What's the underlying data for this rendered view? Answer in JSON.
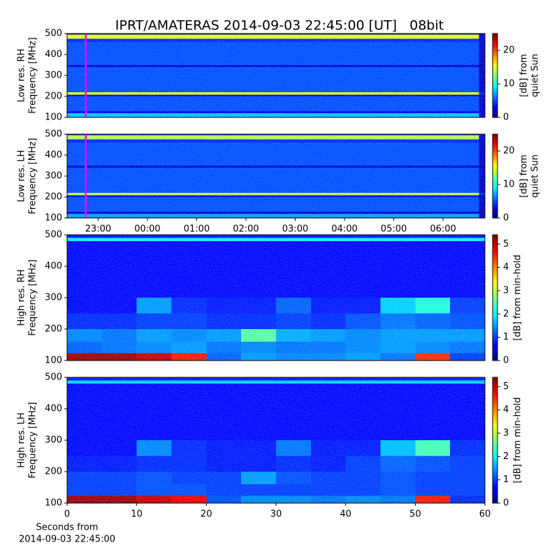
{
  "title": "IPRT/AMATERAS 2014-09-03 22:45:00 [UT]   08bit",
  "chart_data": [
    {
      "type": "heatmap",
      "ylabel": [
        "Low res. RH",
        "Frequency [MHz]"
      ],
      "cbar_label": [
        "[dB] from",
        "quiet Sun"
      ],
      "xlim": [
        22.37,
        30.85
      ],
      "ylim": [
        100,
        500
      ],
      "yticks": [
        100,
        200,
        300,
        400,
        500
      ],
      "clim": [
        0,
        25
      ],
      "cticks": [
        0,
        10,
        20
      ],
      "marker_x": 22.75,
      "marker_color": "#ff00ff",
      "x_bins": [
        22.37,
        30.73,
        30.85
      ],
      "y_bins": [
        100,
        120,
        130,
        200,
        208,
        220,
        340,
        350,
        460,
        475,
        495,
        500
      ],
      "z": [
        [
          8,
          2
        ],
        [
          3,
          2
        ],
        [
          5,
          2
        ],
        [
          3,
          1
        ],
        [
          15,
          4
        ],
        [
          5,
          2
        ],
        [
          2,
          1
        ],
        [
          5,
          2
        ],
        [
          4,
          2
        ],
        [
          15,
          3
        ],
        [
          2,
          1
        ]
      ]
    },
    {
      "type": "heatmap",
      "ylabel": [
        "Low res. LH",
        "Frequency [MHz]"
      ],
      "cbar_label": [
        "[dB] from",
        "quiet Sun"
      ],
      "xlim": [
        22.37,
        30.85
      ],
      "ylim": [
        100,
        500
      ],
      "yticks": [
        100,
        200,
        300,
        400,
        500
      ],
      "xticks": [
        {
          "value": 23,
          "label": "23:00"
        },
        {
          "value": 24,
          "label": "00:00"
        },
        {
          "value": 25,
          "label": "01:00"
        },
        {
          "value": 26,
          "label": "02:00"
        },
        {
          "value": 27,
          "label": "03:00"
        },
        {
          "value": 28,
          "label": "04:00"
        },
        {
          "value": 29,
          "label": "05:00"
        },
        {
          "value": 30,
          "label": "06:00"
        }
      ],
      "clim": [
        0,
        25
      ],
      "cticks": [
        0,
        10,
        20
      ],
      "marker_x": 22.75,
      "marker_color": "#ff00ff",
      "x_bins": [
        22.37,
        30.73,
        30.85
      ],
      "y_bins": [
        100,
        120,
        130,
        200,
        208,
        220,
        340,
        350,
        460,
        475,
        495,
        500
      ],
      "z": [
        [
          7,
          2
        ],
        [
          2,
          1
        ],
        [
          5,
          2
        ],
        [
          3,
          1
        ],
        [
          14,
          4
        ],
        [
          5,
          2
        ],
        [
          2,
          1
        ],
        [
          5,
          2
        ],
        [
          4,
          2
        ],
        [
          14,
          3
        ],
        [
          2,
          1
        ]
      ]
    },
    {
      "type": "heatmap",
      "ylabel": [
        "High res. RH",
        "Frequency [MHz]"
      ],
      "cbar_label": [
        "[dB] from min-hold"
      ],
      "xlim": [
        0,
        60
      ],
      "ylim": [
        100,
        500
      ],
      "yticks": [
        100,
        200,
        300,
        400,
        500
      ],
      "clim": [
        0,
        5.4
      ],
      "cticks": [
        0,
        1,
        2,
        3,
        4,
        5
      ],
      "x_bins": [
        0,
        5,
        10,
        15,
        20,
        25,
        30,
        35,
        40,
        45,
        50,
        55,
        60
      ],
      "y_bins": [
        100,
        123,
        160,
        200,
        250,
        300,
        480,
        490,
        500
      ],
      "z": [
        [
          5.2,
          5.2,
          5.0,
          4.6,
          1.2,
          1.5,
          1.4,
          1.4,
          1.5,
          1.3,
          4.5,
          1.0
        ],
        [
          1.2,
          1.3,
          1.4,
          1.5,
          1.3,
          1.4,
          1.3,
          1.3,
          1.4,
          1.5,
          1.4,
          1.3
        ],
        [
          1.4,
          1.3,
          1.5,
          1.4,
          1.5,
          2.5,
          1.6,
          1.5,
          1.4,
          1.5,
          1.5,
          1.5
        ],
        [
          0.9,
          0.9,
          1.0,
          1.0,
          0.9,
          0.9,
          1.0,
          0.9,
          1.1,
          1.3,
          1.2,
          1.1
        ],
        [
          0.7,
          0.7,
          1.5,
          0.9,
          0.8,
          0.8,
          1.2,
          0.8,
          0.8,
          1.8,
          2.2,
          1.0
        ],
        [
          0.7,
          0.7,
          0.7,
          0.7,
          0.7,
          0.7,
          0.7,
          0.7,
          0.7,
          0.7,
          0.7,
          0.7
        ],
        [
          2.0,
          2.0,
          2.0,
          2.0,
          2.0,
          2.0,
          2.0,
          2.0,
          2.0,
          2.0,
          2.0,
          2.0
        ],
        [
          0.8,
          0.8,
          0.8,
          0.8,
          0.8,
          0.8,
          0.8,
          0.8,
          0.8,
          0.8,
          0.8,
          0.8
        ]
      ]
    },
    {
      "type": "heatmap",
      "ylabel": [
        "High res. LH",
        "Frequency [MHz]"
      ],
      "cbar_label": [
        "[dB] from min-hold"
      ],
      "xlim": [
        0,
        60
      ],
      "ylim": [
        100,
        500
      ],
      "yticks": [
        100,
        200,
        300,
        400,
        500
      ],
      "xticks": [
        0,
        10,
        20,
        30,
        40,
        50,
        60
      ],
      "xlabel": [
        "Seconds from",
        "2014-09-03 22:45:00"
      ],
      "clim": [
        0,
        5.4
      ],
      "cticks": [
        0,
        1,
        2,
        3,
        4,
        5
      ],
      "x_bins": [
        0,
        5,
        10,
        15,
        20,
        25,
        30,
        35,
        40,
        45,
        50,
        55,
        60
      ],
      "y_bins": [
        100,
        123,
        160,
        200,
        250,
        300,
        480,
        490,
        500
      ],
      "z": [
        [
          5.2,
          5.2,
          5.0,
          4.8,
          1.1,
          1.4,
          1.4,
          1.3,
          1.4,
          1.3,
          4.6,
          0.9
        ],
        [
          1.0,
          1.0,
          1.1,
          1.1,
          1.0,
          1.0,
          1.0,
          1.0,
          1.0,
          1.1,
          1.0,
          1.0
        ],
        [
          1.0,
          1.0,
          1.1,
          1.0,
          1.0,
          1.5,
          1.1,
          1.0,
          1.0,
          1.1,
          1.0,
          1.0
        ],
        [
          0.8,
          0.8,
          0.9,
          0.9,
          0.8,
          0.8,
          0.9,
          0.8,
          1.0,
          1.2,
          1.1,
          1.0
        ],
        [
          0.7,
          0.7,
          1.4,
          0.9,
          0.8,
          0.8,
          1.3,
          0.8,
          0.8,
          1.7,
          2.4,
          0.9
        ],
        [
          0.7,
          0.7,
          0.7,
          0.7,
          0.7,
          0.7,
          0.7,
          0.7,
          0.7,
          0.7,
          0.7,
          0.7
        ],
        [
          1.8,
          1.8,
          1.8,
          1.8,
          1.8,
          1.8,
          1.8,
          1.8,
          1.8,
          1.8,
          1.8,
          1.8
        ],
        [
          0.8,
          0.8,
          0.8,
          0.8,
          0.8,
          0.8,
          0.8,
          0.8,
          0.8,
          0.8,
          0.8,
          0.8
        ]
      ]
    }
  ]
}
